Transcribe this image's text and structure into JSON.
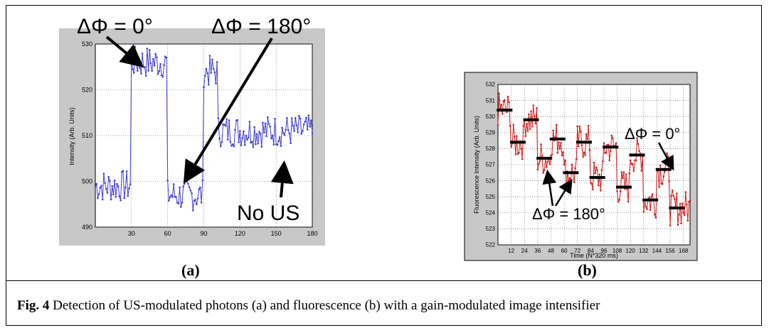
{
  "charts": [
    {
      "type": "line",
      "panel_label": "(a)",
      "ylabel": "Intensity (Arb. Units)",
      "xlim": [
        0,
        180
      ],
      "ylim": [
        490,
        530
      ],
      "xticks": [
        30,
        60,
        90,
        120,
        150,
        180
      ],
      "yticks": [
        490,
        500,
        510,
        520,
        530
      ],
      "grid": true,
      "line_color": "#4040d0",
      "segments": [
        {
          "x_start": 0,
          "x_end": 30,
          "mean": 499
        },
        {
          "x_start": 30,
          "x_end": 60,
          "mean": 526
        },
        {
          "x_start": 60,
          "x_end": 90,
          "mean": 497
        },
        {
          "x_start": 90,
          "x_end": 102,
          "mean": 524
        },
        {
          "x_start": 102,
          "x_end": 180,
          "mean": 511
        }
      ],
      "annotations": [
        {
          "text": "ΔΦ = 0°"
        },
        {
          "text": "ΔΦ = 180°"
        },
        {
          "text": "No US"
        }
      ]
    },
    {
      "type": "line",
      "panel_label": "(b)",
      "xlabel": "Time (N*320 ms)",
      "ylabel": "Fluorescence Intensity (Arb. Units)",
      "xlim": [
        0,
        174
      ],
      "ylim": [
        522,
        532
      ],
      "xticks": [
        12,
        24,
        36,
        48,
        60,
        72,
        84,
        96,
        108,
        120,
        132,
        144,
        156,
        168
      ],
      "yticks": [
        522,
        523,
        524,
        525,
        526,
        527,
        528,
        529,
        530,
        531,
        532
      ],
      "grid": true,
      "line_color": "#d02020",
      "segment_means": [
        {
          "x_start": 0,
          "x_end": 12,
          "mean": 530.4
        },
        {
          "x_start": 12,
          "x_end": 24,
          "mean": 528.4
        },
        {
          "x_start": 24,
          "x_end": 36,
          "mean": 529.8
        },
        {
          "x_start": 36,
          "x_end": 48,
          "mean": 527.4
        },
        {
          "x_start": 48,
          "x_end": 60,
          "mean": 528.6
        },
        {
          "x_start": 60,
          "x_end": 72,
          "mean": 526.5
        },
        {
          "x_start": 72,
          "x_end": 84,
          "mean": 528.4
        },
        {
          "x_start": 84,
          "x_end": 96,
          "mean": 526.2
        },
        {
          "x_start": 96,
          "x_end": 108,
          "mean": 528.1
        },
        {
          "x_start": 108,
          "x_end": 120,
          "mean": 525.6
        },
        {
          "x_start": 120,
          "x_end": 132,
          "mean": 527.6
        },
        {
          "x_start": 132,
          "x_end": 144,
          "mean": 524.8
        },
        {
          "x_start": 144,
          "x_end": 156,
          "mean": 526.7
        },
        {
          "x_start": 156,
          "x_end": 168,
          "mean": 524.3
        }
      ],
      "annotations": [
        {
          "text": "ΔΦ = 0°"
        },
        {
          "text": "ΔΦ = 180°"
        }
      ]
    }
  ],
  "caption": {
    "label": "Fig. 4",
    "text": " Detection of US-modulated photons (a) and fluorescence (b) with a gain-modulated image intensifier"
  }
}
